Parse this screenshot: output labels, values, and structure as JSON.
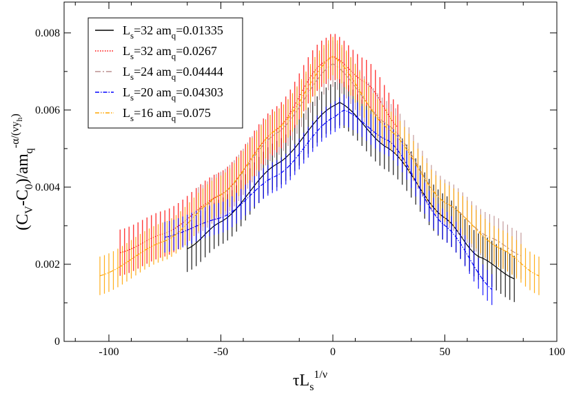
{
  "chart_data": {
    "type": "line",
    "title": "",
    "xlabel": "τL",
    "xlabel_sub": "s",
    "xlabel_sup": "1/ν",
    "ylabel_parts": {
      "a": "(C",
      "b": "V",
      "c": "-C",
      "d": "0",
      "e": ")/am",
      "f": "q",
      "g": "-α/(νy",
      "h": "h",
      "i": ")"
    },
    "xlim": [
      -120,
      100
    ],
    "ylim": [
      0,
      0.0088
    ],
    "xticks": [
      -100,
      -50,
      0,
      50,
      100
    ],
    "xtick_labels": [
      "-100",
      "-50",
      "0",
      "50",
      "100"
    ],
    "yticks": [
      0,
      0.002,
      0.004,
      0.006,
      0.008
    ],
    "ytick_labels": [
      "0",
      "0.002",
      "0.004",
      "0.006",
      "0.008"
    ],
    "legend_position": "top-left",
    "series": [
      {
        "name": "Ls=32 amq=0.01335",
        "L": "32",
        "am": "0.01335",
        "color": "#000000",
        "dash": "",
        "err": 0.0006,
        "x": [
          -65,
          -50,
          -25,
          0,
          3,
          25,
          50,
          65,
          82
        ],
        "y": [
          0.0024,
          0.0031,
          0.0046,
          0.0061,
          0.0062,
          0.005,
          0.0032,
          0.0022,
          0.0016
        ]
      },
      {
        "name": "Ls=32 amq=0.0267",
        "L": "32",
        "am": "0.0267",
        "color": "#ff0000",
        "dash": "1.5,2",
        "err": 0.0006,
        "x": [
          -95,
          -75,
          -50,
          -25,
          -5,
          0,
          15,
          30
        ],
        "y": [
          0.0023,
          0.0028,
          0.0038,
          0.0055,
          0.0072,
          0.0074,
          0.0067,
          0.0055
        ]
      },
      {
        "name": "Ls=24 amq=0.04444",
        "L": "24",
        "am": "0.04444",
        "color": "#bc8f8f",
        "dash": "8,3,2,3",
        "err": 0.0006,
        "x": [
          -60,
          -50,
          -25,
          0,
          25,
          50,
          70,
          85
        ],
        "y": [
          0.0034,
          0.0038,
          0.0054,
          0.0072,
          0.0056,
          0.0036,
          0.0027,
          0.0022
        ]
      },
      {
        "name": "Ls=20 amq=0.04303",
        "L": "20",
        "am": "0.04303",
        "color": "#0000ff",
        "dash": "6,2,1.5,2",
        "err": 0.0004,
        "x": [
          -75,
          -50,
          -25,
          0,
          5,
          25,
          50,
          72
        ],
        "y": [
          0.0027,
          0.0032,
          0.0043,
          0.0058,
          0.006,
          0.0052,
          0.003,
          0.0013
        ]
      },
      {
        "name": "Ls=16 amq=0.075",
        "L": "16",
        "am": "0.075",
        "color": "#ffa500",
        "dash": "6,2,1.5,2,1.5,2",
        "err": 0.0005,
        "x": [
          -104,
          -75,
          -50,
          -25,
          0,
          25,
          50,
          75,
          92
        ],
        "y": [
          0.0017,
          0.0026,
          0.0038,
          0.0055,
          0.0074,
          0.0055,
          0.0036,
          0.0024,
          0.0017
        ]
      }
    ]
  }
}
